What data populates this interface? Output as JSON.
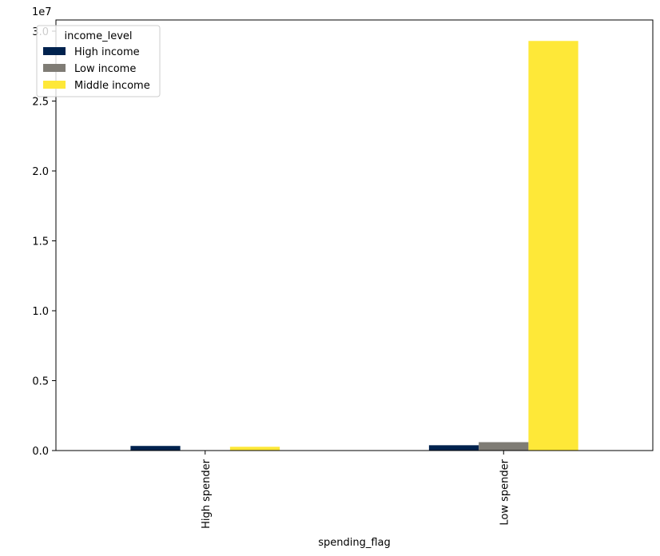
{
  "chart_data": {
    "type": "bar",
    "title": "",
    "xlabel": "spending_flag",
    "ylabel": "",
    "offset_label": "1e7",
    "categories": [
      "High spender",
      "Low spender"
    ],
    "y_ticks": [
      "0.0",
      "0.5",
      "1.0",
      "1.5",
      "2.0",
      "2.5",
      "3.0"
    ],
    "y_tick_values": [
      0,
      5000000,
      10000000,
      15000000,
      20000000,
      25000000,
      30000000
    ],
    "ylim": [
      0,
      30800000
    ],
    "legend": {
      "title": "income_level",
      "placement": "upper left"
    },
    "series": [
      {
        "name": "High income",
        "color": "#00224e",
        "values": [
          330000,
          380000
        ]
      },
      {
        "name": "Low income",
        "color": "#7f7c75",
        "values": [
          0,
          600000
        ]
      },
      {
        "name": "Middle income",
        "color": "#fee838",
        "values": [
          270000,
          29300000
        ]
      }
    ],
    "grid": false
  }
}
